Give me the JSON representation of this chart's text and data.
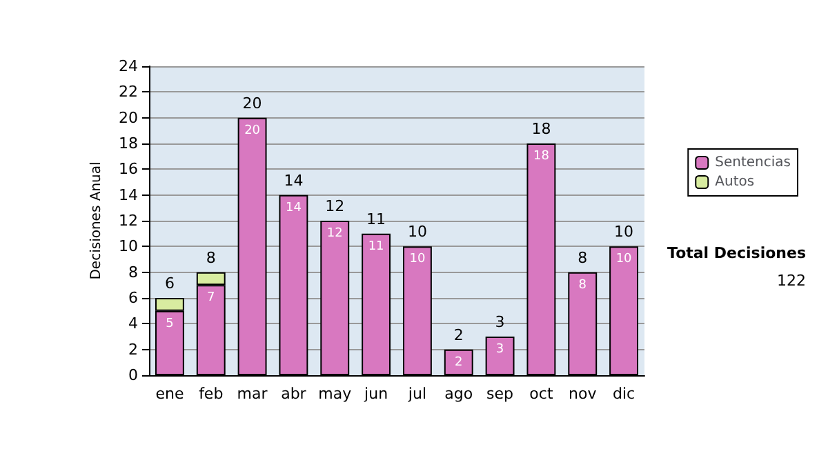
{
  "chart_data": {
    "type": "bar",
    "stacked": true,
    "ylabel": "Decisiones Anual",
    "categories": [
      "ene",
      "feb",
      "mar",
      "abr",
      "may",
      "jun",
      "jul",
      "ago",
      "sep",
      "oct",
      "nov",
      "dic"
    ],
    "series": [
      {
        "name": "Sentencias",
        "color": "#d878c0",
        "values": [
          5,
          7,
          20,
          14,
          12,
          11,
          10,
          2,
          3,
          18,
          8,
          10
        ],
        "value_labels": [
          "5",
          "7",
          "20",
          "14",
          "12",
          "11",
          "10",
          "2",
          "3",
          "18",
          "8",
          "10"
        ]
      },
      {
        "name": "Autos",
        "color": "#d8eca0",
        "values": [
          1,
          1,
          0,
          0,
          0,
          0,
          0,
          0,
          0,
          0,
          0,
          0
        ]
      }
    ],
    "totals": [
      "6",
      "8",
      "20",
      "14",
      "12",
      "11",
      "10",
      "2",
      "3",
      "18",
      "8",
      "10"
    ],
    "ylim": [
      0,
      24
    ],
    "yticks": [
      0,
      2,
      4,
      6,
      8,
      10,
      12,
      14,
      16,
      18,
      20,
      22,
      24
    ],
    "grid": "y",
    "legend": "right",
    "annotations": [
      "Total Decisiones",
      "122"
    ]
  }
}
